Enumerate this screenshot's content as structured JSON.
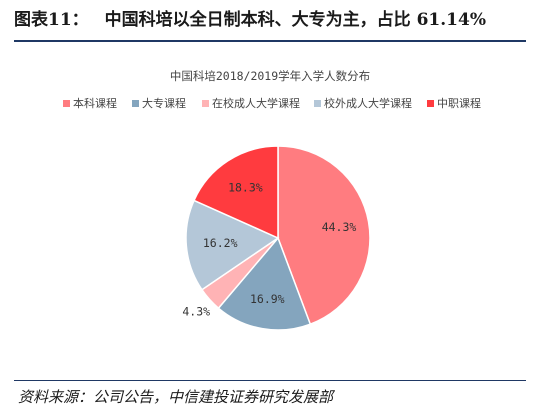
{
  "figure": {
    "label": "图表11：",
    "heading": "中国科培以全日制本科、大专为主，占比 61.14%",
    "source": "资料来源：公司公告，中信建投证券研究发展部"
  },
  "chart_data": {
    "type": "pie",
    "title": "中国科培2018/2019学年入学人数分布",
    "legend_position": "top",
    "categories": [
      "本科课程",
      "大专课程",
      "在校成人大学课程",
      "校外成人大学课程",
      "中职课程"
    ],
    "values": [
      44.3,
      16.9,
      4.3,
      16.2,
      18.3
    ],
    "labels": [
      "44.3%",
      "16.9%",
      "4.3%",
      "16.2%",
      "18.3%"
    ],
    "colors": [
      "#ff7c80",
      "#84a5be",
      "#ffb3b5",
      "#b4c7d8",
      "#ff3b3f"
    ]
  }
}
